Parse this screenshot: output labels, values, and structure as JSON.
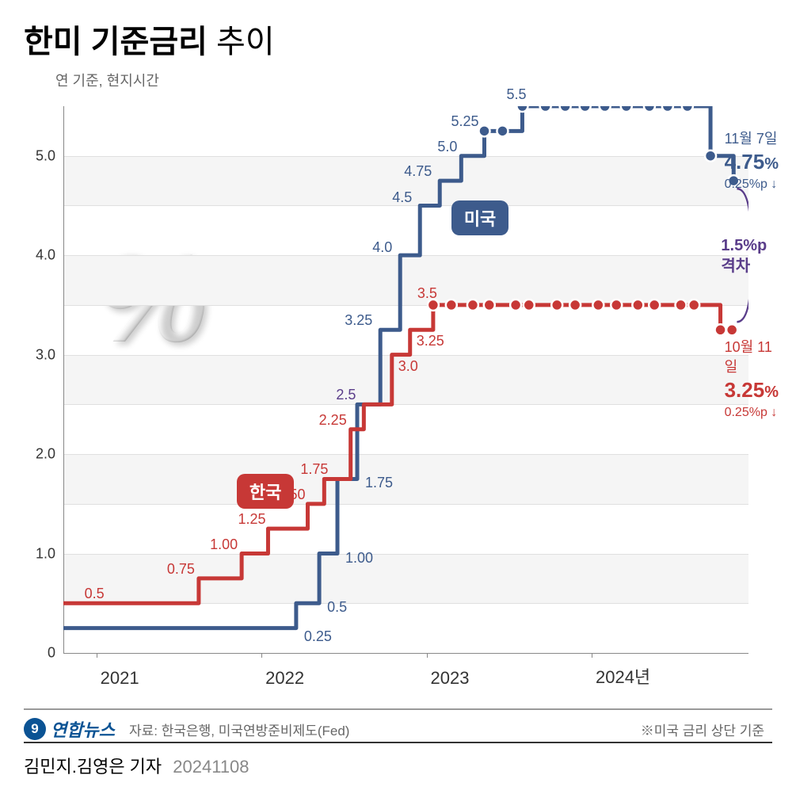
{
  "title_bold": "한미 기준금리",
  "title_light": "추이",
  "subtitle": "연 기준, 현지시간",
  "chart": {
    "type": "step-line",
    "x_start": 2020.8,
    "x_end": 2024.95,
    "ylim": [
      0,
      5.5
    ],
    "y_ticks": [
      0,
      1.0,
      2.0,
      3.0,
      4.0,
      5.0
    ],
    "x_ticks": [
      {
        "x": 2021,
        "label": "2021"
      },
      {
        "x": 2022,
        "label": "2022"
      },
      {
        "x": 2023,
        "label": "2023"
      },
      {
        "x": 2024,
        "label": "2024년"
      }
    ],
    "grid_bands": [
      [
        0.5,
        1.0
      ],
      [
        1.5,
        2.0
      ],
      [
        2.5,
        3.0
      ],
      [
        3.5,
        4.0
      ],
      [
        4.5,
        5.0
      ]
    ],
    "grid_lines": [
      0.5,
      1.0,
      1.5,
      2.0,
      2.5,
      3.0,
      3.5,
      4.0,
      4.5,
      5.0
    ],
    "background_color": "#ffffff",
    "grid_color": "#e0e0e0"
  },
  "series": {
    "korea": {
      "label": "한국",
      "color": "#c73836",
      "line_width": 5,
      "steps": [
        {
          "x": 2020.8,
          "y": 0.5
        },
        {
          "x": 2021.62,
          "y": 0.75
        },
        {
          "x": 2021.88,
          "y": 1.0
        },
        {
          "x": 2022.04,
          "y": 1.25
        },
        {
          "x": 2022.28,
          "y": 1.5
        },
        {
          "x": 2022.38,
          "y": 1.75
        },
        {
          "x": 2022.54,
          "y": 2.25
        },
        {
          "x": 2022.62,
          "y": 2.5
        },
        {
          "x": 2022.79,
          "y": 3.0
        },
        {
          "x": 2022.9,
          "y": 3.25
        },
        {
          "x": 2023.04,
          "y": 3.5
        },
        {
          "x": 2024.78,
          "y": 3.25
        }
      ],
      "end_x": 2024.85,
      "dots": [
        {
          "x": 2023.04,
          "y": 3.5
        },
        {
          "x": 2023.15,
          "y": 3.5
        },
        {
          "x": 2023.28,
          "y": 3.5
        },
        {
          "x": 2023.38,
          "y": 3.5
        },
        {
          "x": 2023.54,
          "y": 3.5
        },
        {
          "x": 2023.62,
          "y": 3.5
        },
        {
          "x": 2023.79,
          "y": 3.5
        },
        {
          "x": 2023.9,
          "y": 3.5
        },
        {
          "x": 2024.04,
          "y": 3.5
        },
        {
          "x": 2024.15,
          "y": 3.5
        },
        {
          "x": 2024.28,
          "y": 3.5
        },
        {
          "x": 2024.38,
          "y": 3.5
        },
        {
          "x": 2024.54,
          "y": 3.5
        },
        {
          "x": 2024.62,
          "y": 3.5
        },
        {
          "x": 2024.78,
          "y": 3.25
        },
        {
          "x": 2024.85,
          "y": 3.25
        }
      ],
      "point_labels": [
        {
          "x": 2021.0,
          "y": 0.5,
          "text": "0.5",
          "dx": -15,
          "dy": -22
        },
        {
          "x": 2021.62,
          "y": 0.75,
          "text": "0.75",
          "dx": -40,
          "dy": -22
        },
        {
          "x": 2021.88,
          "y": 1.0,
          "text": "1.00",
          "dx": -40,
          "dy": -22
        },
        {
          "x": 2022.04,
          "y": 1.25,
          "text": "1.25",
          "dx": -38,
          "dy": -22
        },
        {
          "x": 2022.28,
          "y": 1.5,
          "text": "1.50",
          "dx": -38,
          "dy": -22
        },
        {
          "x": 2022.38,
          "y": 1.75,
          "text": "1.75",
          "dx": -30,
          "dy": -22
        },
        {
          "x": 2022.54,
          "y": 2.25,
          "text": "2.25",
          "dx": -40,
          "dy": -22
        },
        {
          "x": 2022.62,
          "y": 2.5,
          "text": "2.5",
          "dx": -35,
          "dy": -22,
          "purple": true
        },
        {
          "x": 2022.79,
          "y": 3.0,
          "text": "3.0",
          "dx": 8,
          "dy": 4
        },
        {
          "x": 2022.9,
          "y": 3.25,
          "text": "3.25",
          "dx": 8,
          "dy": 4
        },
        {
          "x": 2023.04,
          "y": 3.5,
          "text": "3.5",
          "dx": -20,
          "dy": -25
        }
      ],
      "callout": {
        "date": "10월 11일",
        "value": "3.25",
        "unit": "%",
        "delta": "0.25%p ↓"
      }
    },
    "us": {
      "label": "미국",
      "color": "#3d5b8c",
      "line_width": 5,
      "steps": [
        {
          "x": 2020.8,
          "y": 0.25
        },
        {
          "x": 2022.21,
          "y": 0.5
        },
        {
          "x": 2022.35,
          "y": 1.0
        },
        {
          "x": 2022.46,
          "y": 1.75
        },
        {
          "x": 2022.58,
          "y": 2.5
        },
        {
          "x": 2022.72,
          "y": 3.25
        },
        {
          "x": 2022.84,
          "y": 4.0
        },
        {
          "x": 2022.96,
          "y": 4.5
        },
        {
          "x": 2023.08,
          "y": 4.75
        },
        {
          "x": 2023.21,
          "y": 5.0
        },
        {
          "x": 2023.35,
          "y": 5.25
        },
        {
          "x": 2023.46,
          "y": 5.25
        },
        {
          "x": 2023.58,
          "y": 5.5
        },
        {
          "x": 2024.72,
          "y": 5.0
        },
        {
          "x": 2024.86,
          "y": 4.75
        }
      ],
      "end_x": 2024.9,
      "dots": [
        {
          "x": 2023.35,
          "y": 5.25
        },
        {
          "x": 2023.46,
          "y": 5.25
        },
        {
          "x": 2023.58,
          "y": 5.5
        },
        {
          "x": 2023.72,
          "y": 5.5
        },
        {
          "x": 2023.84,
          "y": 5.5
        },
        {
          "x": 2023.96,
          "y": 5.5
        },
        {
          "x": 2024.08,
          "y": 5.5
        },
        {
          "x": 2024.21,
          "y": 5.5
        },
        {
          "x": 2024.35,
          "y": 5.5
        },
        {
          "x": 2024.46,
          "y": 5.5
        },
        {
          "x": 2024.58,
          "y": 5.5
        },
        {
          "x": 2024.72,
          "y": 5.0
        },
        {
          "x": 2024.86,
          "y": 4.75
        }
      ],
      "point_labels": [
        {
          "x": 2022.21,
          "y": 0.25,
          "text": "0.25",
          "dx": 10,
          "dy": 0
        },
        {
          "x": 2022.35,
          "y": 0.5,
          "text": "0.5",
          "dx": 10,
          "dy": -5
        },
        {
          "x": 2022.46,
          "y": 1.0,
          "text": "1.00",
          "dx": 10,
          "dy": -5
        },
        {
          "x": 2022.58,
          "y": 1.75,
          "text": "1.75",
          "dx": 10,
          "dy": -5
        },
        {
          "x": 2022.72,
          "y": 3.25,
          "text": "3.25",
          "dx": -45,
          "dy": -22
        },
        {
          "x": 2022.84,
          "y": 4.0,
          "text": "4.0",
          "dx": -35,
          "dy": -20
        },
        {
          "x": 2022.96,
          "y": 4.5,
          "text": "4.5",
          "dx": -35,
          "dy": -20
        },
        {
          "x": 2023.08,
          "y": 4.75,
          "text": "4.75",
          "dx": -45,
          "dy": -22
        },
        {
          "x": 2023.21,
          "y": 5.0,
          "text": "5.0",
          "dx": -30,
          "dy": -22
        },
        {
          "x": 2023.35,
          "y": 5.25,
          "text": "5.25",
          "dx": -42,
          "dy": -22
        },
        {
          "x": 2023.58,
          "y": 5.5,
          "text": "5.5",
          "dx": -20,
          "dy": -25
        }
      ],
      "callout": {
        "date": "11월 7일",
        "value": "4.75",
        "unit": "%",
        "delta": "0.25%p ↓"
      }
    }
  },
  "gap": {
    "value": "1.5%p",
    "text": "격차",
    "color": "#5a3d8a"
  },
  "footer": {
    "logo_text": "연합뉴스",
    "source": "자료: 한국은행, 미국연방준비제도(Fed)",
    "note": "※미국 금리 상단 기준"
  },
  "byline": {
    "authors": "김민지.김영은 기자",
    "date": "20241108"
  }
}
